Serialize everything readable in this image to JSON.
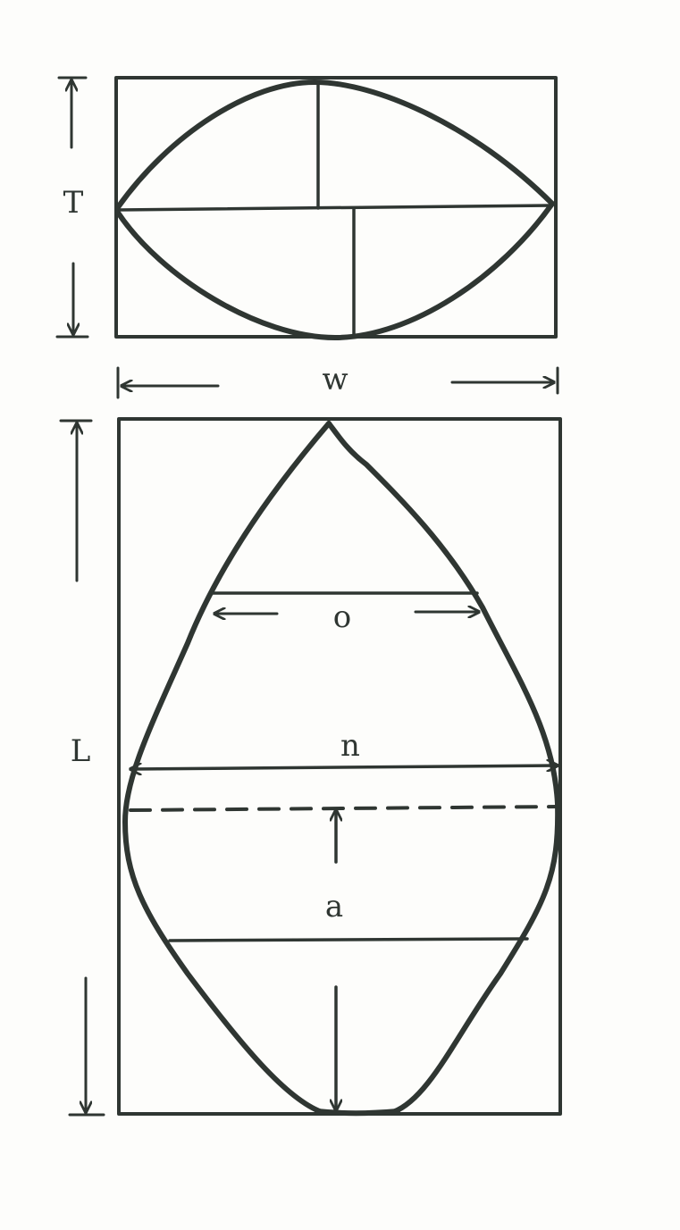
{
  "labels": {
    "thickness": "T",
    "width": "w",
    "length": "L",
    "dim_o": "o",
    "dim_n": "n",
    "dim_a": "a"
  },
  "colors": {
    "ink": "#2f3632",
    "paper": "#fdfdfb"
  }
}
